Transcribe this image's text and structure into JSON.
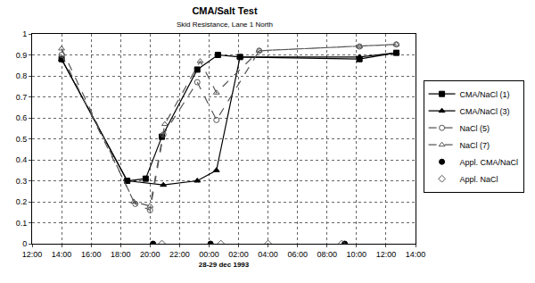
{
  "chart_data": {
    "type": "line",
    "title": "CMA/Salt Test",
    "subtitle": "Skid Resistance, Lane 1 North",
    "x_label": "28-29 dec 1993",
    "xlim": [
      12,
      38
    ],
    "xticks": [
      {
        "value": 12,
        "label": "12:00"
      },
      {
        "value": 14,
        "label": "14:00"
      },
      {
        "value": 16,
        "label": "16:00"
      },
      {
        "value": 18,
        "label": "18:00"
      },
      {
        "value": 20,
        "label": "20:00"
      },
      {
        "value": 22,
        "label": "22:00"
      },
      {
        "value": 24,
        "label": "00:00"
      },
      {
        "value": 26,
        "label": "02:00"
      },
      {
        "value": 28,
        "label": "04:00"
      },
      {
        "value": 30,
        "label": "06:00"
      },
      {
        "value": 32,
        "label": "08:00"
      },
      {
        "value": 34,
        "label": "10:00"
      },
      {
        "value": 36,
        "label": "12:00"
      },
      {
        "value": 38,
        "label": "14:00"
      }
    ],
    "ylim": [
      0,
      1
    ],
    "yticks": [
      0,
      0.1,
      0.2,
      0.3,
      0.4,
      0.5,
      0.6,
      0.7,
      0.8,
      0.9,
      1
    ],
    "grid": true,
    "legend": "right",
    "series": [
      {
        "name": "CMA/NaCl (1)",
        "type": "line",
        "color": "#000000",
        "marker": "square",
        "line_style": "solid",
        "x": [
          14.0,
          18.45,
          19.7,
          20.8,
          23.2,
          24.6,
          26.1,
          34.2,
          36.7
        ],
        "values": [
          0.88,
          0.3,
          0.31,
          0.51,
          0.83,
          0.9,
          0.89,
          0.88,
          0.91
        ]
      },
      {
        "name": "CMA/NaCl (3)",
        "type": "line",
        "color": "#000000",
        "marker": "triangle-up",
        "line_style": "solid",
        "x": [
          14.0,
          18.45,
          20.9,
          23.2,
          24.5,
          26.1,
          34.2,
          36.7
        ],
        "values": [
          0.88,
          0.3,
          0.28,
          0.3,
          0.35,
          0.89,
          0.89,
          0.91
        ]
      },
      {
        "name": "NaCl (5)",
        "type": "line",
        "color": "#555555",
        "marker": "circle-open",
        "line_style": "dash",
        "x": [
          14.0,
          19.0,
          20.0,
          20.9,
          23.2,
          24.5,
          27.4,
          34.2,
          36.7
        ],
        "values": [
          0.9,
          0.19,
          0.16,
          0.52,
          0.77,
          0.59,
          0.92,
          0.94,
          0.95
        ]
      },
      {
        "name": "NaCl (7)",
        "type": "line",
        "color": "#555555",
        "marker": "triangle-up-open",
        "line_style": "dash",
        "x": [
          14.0,
          18.9,
          20.0,
          21.0,
          23.4,
          24.5,
          27.4,
          34.2,
          36.7
        ],
        "values": [
          0.93,
          0.2,
          0.18,
          0.57,
          0.87,
          0.72,
          0.92,
          0.94,
          0.95
        ]
      },
      {
        "name": "Appl. CMA/NaCl",
        "type": "scatter",
        "color": "#000000",
        "marker": "circle",
        "line_style": "none",
        "x": [
          20.2,
          24.1,
          33.2
        ],
        "values": [
          0,
          0,
          0
        ]
      },
      {
        "name": "Appl. NaCl",
        "type": "scatter",
        "color": "#555555",
        "marker": "diamond-open",
        "line_style": "none",
        "x": [
          20.8,
          24.8,
          28.0,
          33.0
        ],
        "values": [
          0,
          0,
          0,
          0
        ]
      }
    ]
  }
}
